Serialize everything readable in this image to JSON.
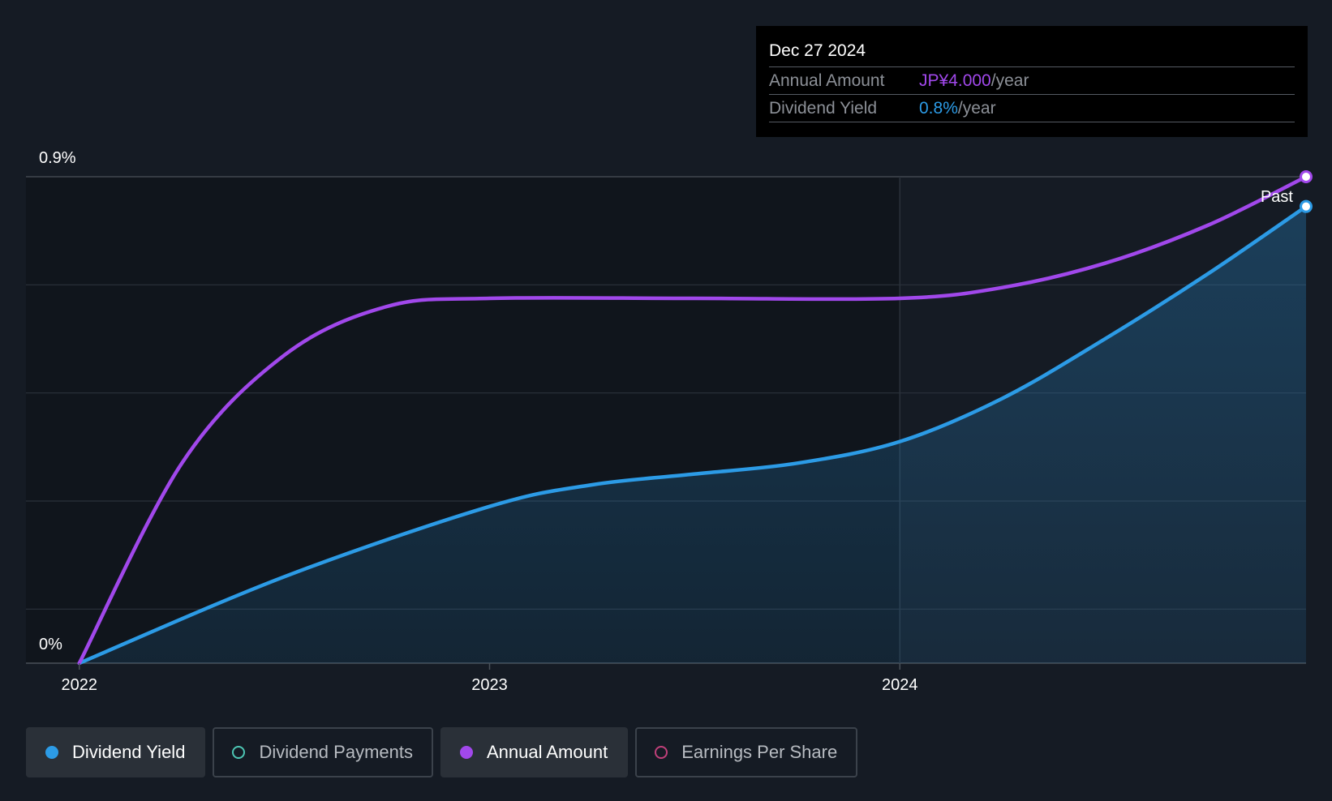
{
  "colors": {
    "background": "#151b24",
    "yield": "#2c9be6",
    "annual": "#a148eb",
    "payments": "#4dc6b4",
    "eps": "#c0407a"
  },
  "tooltip": {
    "date": "Dec 27 2024",
    "annual_label": "Annual Amount",
    "annual_value": "JP¥4.000",
    "annual_unit": "/year",
    "yield_label": "Dividend Yield",
    "yield_value": "0.8%",
    "yield_unit": "/year"
  },
  "legend": [
    {
      "label": "Dividend Yield",
      "active": true,
      "color": "#2c9be6",
      "icon": "filled-circle"
    },
    {
      "label": "Dividend Payments",
      "active": false,
      "color": "#4dc6b4",
      "icon": "hollow-circle"
    },
    {
      "label": "Annual Amount",
      "active": true,
      "color": "#a148eb",
      "icon": "filled-circle"
    },
    {
      "label": "Earnings Per Share",
      "active": false,
      "color": "#c0407a",
      "icon": "hollow-circle"
    }
  ],
  "chart_data": {
    "type": "line",
    "y_tick_labels": [
      "0.9%",
      "0%"
    ],
    "ylim": [
      0,
      0.9
    ],
    "x_ticks": [
      "2022",
      "2023",
      "2024"
    ],
    "x_range": [
      2021.87,
      2024.99
    ],
    "past_label": "Past",
    "past_start": 2024.0,
    "grid": true,
    "series": [
      {
        "name": "Dividend Yield",
        "color": "#2c9be6",
        "fill": true,
        "x": [
          2022.0,
          2022.5,
          2023.0,
          2023.25,
          2023.5,
          2023.75,
          2024.0,
          2024.25,
          2024.5,
          2024.75,
          2024.99
        ],
        "y": [
          0.0,
          0.16,
          0.29,
          0.33,
          0.35,
          0.37,
          0.41,
          0.49,
          0.6,
          0.72,
          0.845
        ]
      },
      {
        "name": "Annual Amount",
        "color": "#a148eb",
        "fill": false,
        "x": [
          2022.0,
          2022.25,
          2022.5,
          2022.75,
          2023.0,
          2023.5,
          2024.0,
          2024.25,
          2024.5,
          2024.75,
          2024.99
        ],
        "y": [
          0.0,
          0.37,
          0.57,
          0.66,
          0.675,
          0.675,
          0.675,
          0.695,
          0.74,
          0.81,
          0.9
        ]
      }
    ]
  }
}
